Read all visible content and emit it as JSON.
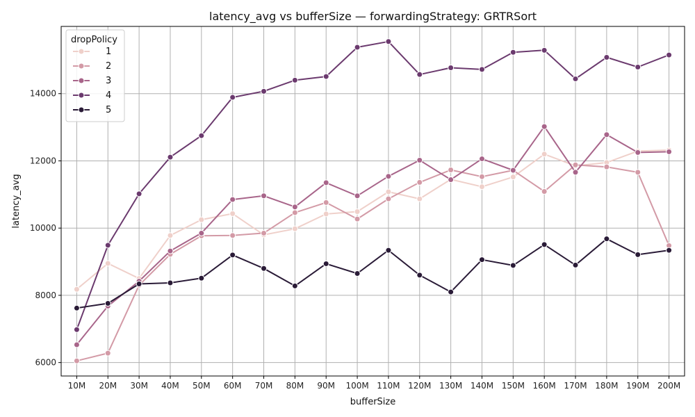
{
  "chart_data": {
    "type": "line",
    "title": "latency_avg vs bufferSize — forwardingStrategy: GRTRSort",
    "xlabel": "bufferSize",
    "ylabel": "latency_avg",
    "categories": [
      "10M",
      "20M",
      "30M",
      "40M",
      "50M",
      "60M",
      "70M",
      "80M",
      "90M",
      "100M",
      "110M",
      "120M",
      "130M",
      "140M",
      "150M",
      "160M",
      "170M",
      "180M",
      "190M",
      "200M"
    ],
    "ylim": [
      5600,
      16000
    ],
    "yticks": [
      6000,
      8000,
      10000,
      12000,
      14000
    ],
    "ytick_labels": [
      "6000",
      "8000",
      "10000",
      "12000",
      "14000"
    ],
    "grid": true,
    "legend": {
      "title": "dropPolicy",
      "position": "top-left"
    },
    "series": [
      {
        "name": "1",
        "color": "#efd0ca",
        "values": [
          8180,
          8950,
          8500,
          9780,
          10250,
          10430,
          9800,
          9980,
          10420,
          10490,
          11080,
          10870,
          11450,
          11230,
          11520,
          12200,
          11850,
          11950,
          12290,
          12320
        ]
      },
      {
        "name": "2",
        "color": "#d39aa6",
        "values": [
          6050,
          6280,
          8300,
          9220,
          9770,
          9780,
          9850,
          10460,
          10760,
          10270,
          10870,
          11360,
          11730,
          11530,
          11720,
          11090,
          11880,
          11820,
          11660,
          9480
        ]
      },
      {
        "name": "3",
        "color": "#a8658a",
        "values": [
          6530,
          7680,
          8420,
          9320,
          9850,
          10850,
          10960,
          10630,
          11350,
          10960,
          11540,
          12020,
          11440,
          12060,
          11720,
          13020,
          11660,
          12780,
          12250,
          12270
        ]
      },
      {
        "name": "4",
        "color": "#6b3a6e",
        "values": [
          6980,
          9490,
          11020,
          12110,
          12750,
          13890,
          14070,
          14400,
          14510,
          15380,
          15550,
          14570,
          14770,
          14720,
          15230,
          15290,
          14440,
          15080,
          14790,
          15150
        ]
      },
      {
        "name": "5",
        "color": "#2a1b37",
        "values": [
          7620,
          7760,
          8340,
          8370,
          8510,
          9200,
          8800,
          8280,
          8940,
          8650,
          9340,
          8600,
          8100,
          9060,
          8890,
          9510,
          8900,
          9680,
          9210,
          9340
        ]
      }
    ]
  }
}
